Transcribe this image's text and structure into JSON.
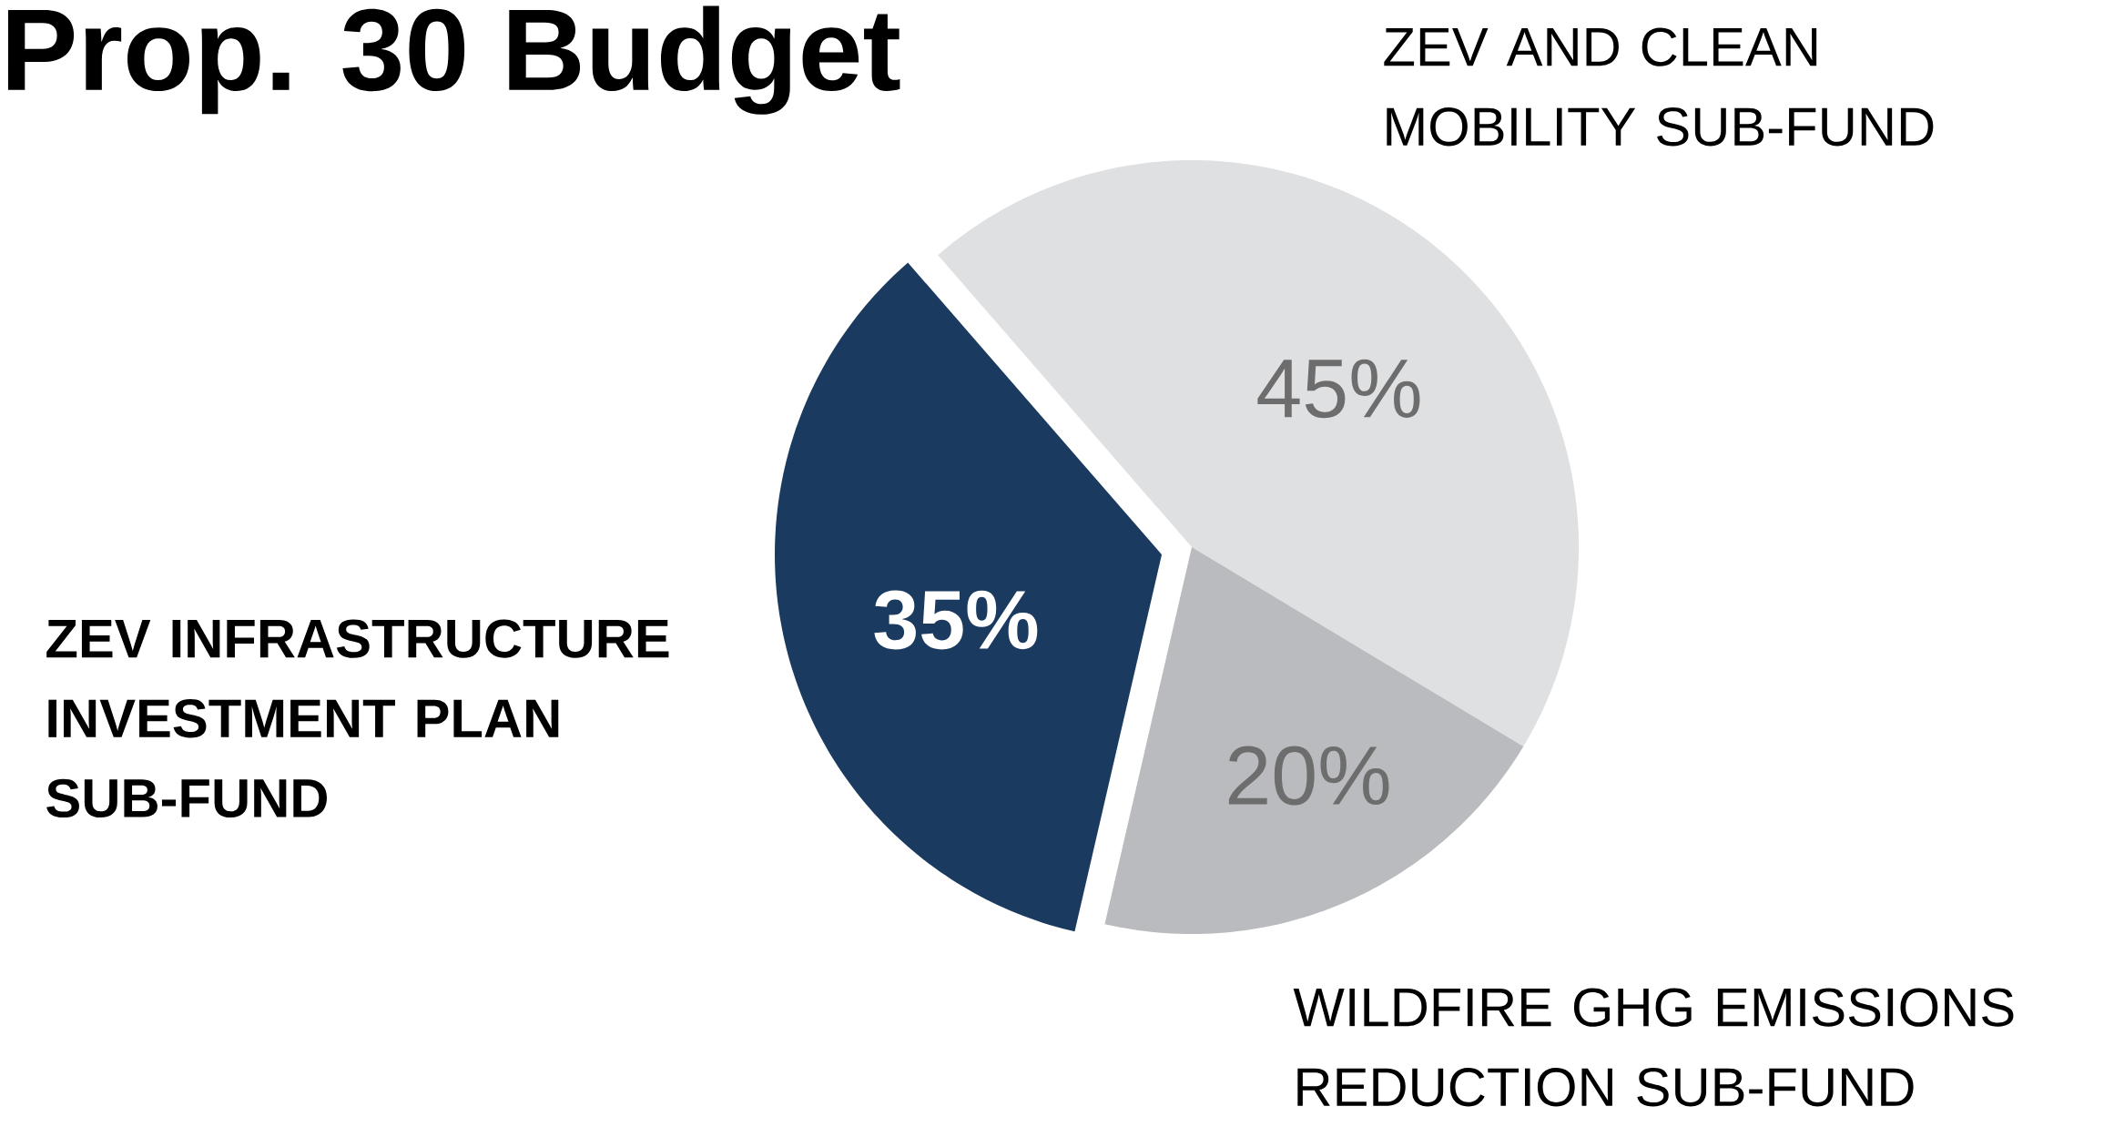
{
  "chart_data": {
    "type": "pie",
    "title": "Prop. 30 Budget",
    "categories": [
      "ZEV AND CLEAN MOBILITY SUB-FUND",
      "WILDFIRE GHG EMISSIONS REDUCTION SUB-FUND",
      "ZEV INFRASTRUCTURE INVESTMENT PLAN SUB-FUND"
    ],
    "values": [
      45,
      20,
      35
    ],
    "colors": [
      "#dfe0e2",
      "#babbbe",
      "#1a3a5f"
    ],
    "value_labels": [
      "45%",
      "20%",
      "35%"
    ]
  }
}
